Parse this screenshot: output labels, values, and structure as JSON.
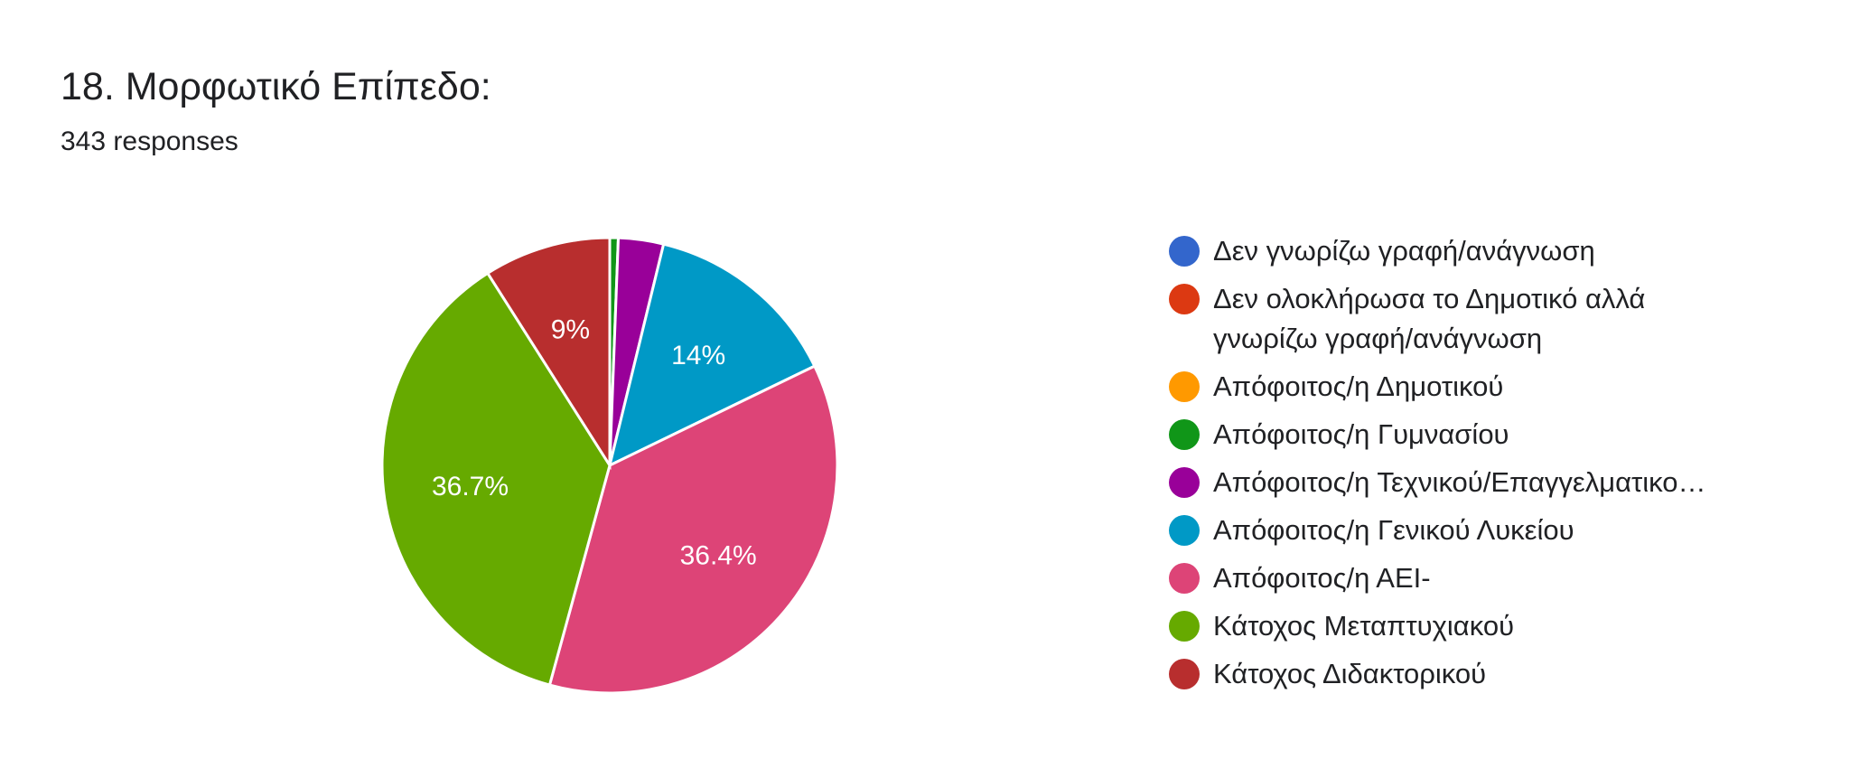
{
  "header": {
    "title": "18. Μορφωτικό Επίπεδο:",
    "responses": "343 responses"
  },
  "chart_data": {
    "type": "pie",
    "title": "18. Μορφωτικό Επίπεδο:",
    "subtitle": "343 responses",
    "legend_position": "right",
    "start_angle_deg": 90,
    "direction": "clockwise",
    "slices": [
      {
        "label": "Δεν γνωρίζω γραφή/ανάγνωση",
        "value": 0.0,
        "color": "#3366cc",
        "data_label": ""
      },
      {
        "label": "Δεν ολοκλήρωσα το Δημοτικό αλλά γνωρίζω γραφή/ανάγνωση",
        "value": 0.0,
        "color": "#dc3912",
        "data_label": ""
      },
      {
        "label": "Απόφοιτος/η Δημοτικού",
        "value": 0.0,
        "color": "#ff9900",
        "data_label": ""
      },
      {
        "label": "Απόφοιτος/η Γυμνασίου",
        "value": 0.6,
        "color": "#109618",
        "data_label": ""
      },
      {
        "label": "Απόφοιτος/η Τεχνικού/Επαγγελματικο…",
        "value": 3.2,
        "color": "#990099",
        "data_label": ""
      },
      {
        "label": "Απόφοιτος/η Γενικού Λυκείου",
        "value": 14.0,
        "color": "#0099c6",
        "data_label": "14%"
      },
      {
        "label": "Απόφοιτος/η ΑΕΙ-",
        "value": 36.4,
        "color": "#dd4477",
        "data_label": "36.4%"
      },
      {
        "label": "Κάτοχος Μεταπτυχιακού",
        "value": 36.7,
        "color": "#66aa00",
        "data_label": "36.7%"
      },
      {
        "label": "Κάτοχος Διδακτορικού",
        "value": 9.0,
        "color": "#b82e2e",
        "data_label": "9%"
      }
    ]
  }
}
